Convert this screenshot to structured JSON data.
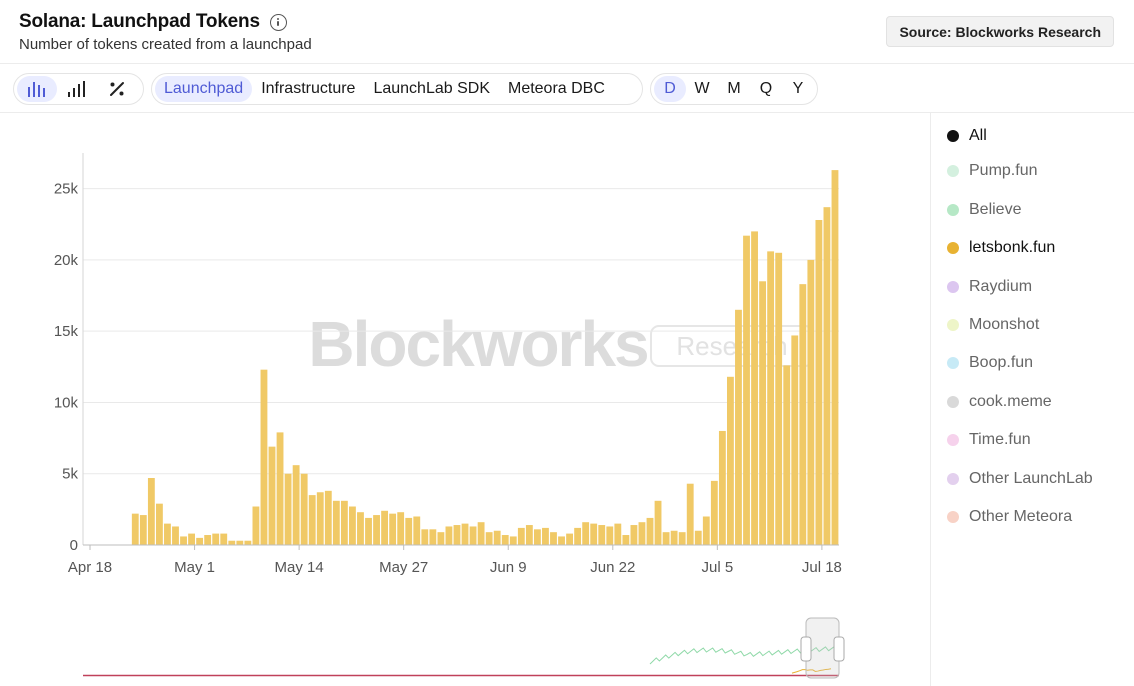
{
  "header": {
    "title": "Solana: Launchpad Tokens",
    "subtitle": "Number of tokens created from a launchpad",
    "source_label": "Source: Blockworks Research"
  },
  "toolbar": {
    "views": [
      {
        "icon": "bar-chart-icon",
        "active": true
      },
      {
        "icon": "signal-bars-icon",
        "active": false
      },
      {
        "icon": "percent-icon",
        "active": false
      }
    ],
    "categories": [
      {
        "label": "Launchpad",
        "active": true
      },
      {
        "label": "Infrastructure",
        "active": false
      },
      {
        "label": "LaunchLab SDK",
        "active": false
      },
      {
        "label": "Meteora DBC",
        "active": false
      }
    ],
    "timeframes": [
      {
        "label": "D",
        "active": true
      },
      {
        "label": "W",
        "active": false
      },
      {
        "label": "M",
        "active": false
      },
      {
        "label": "Q",
        "active": false
      },
      {
        "label": "Y",
        "active": false
      }
    ]
  },
  "watermark": {
    "brand": "Blockworks",
    "tag": "Research"
  },
  "legend": [
    {
      "label": "All",
      "color": "#111111",
      "on": true
    },
    {
      "label": "Pump.fun",
      "color": "#d4f0df",
      "on": false
    },
    {
      "label": "Believe",
      "color": "#b6e8c6",
      "on": false
    },
    {
      "label": "letsbonk.fun",
      "color": "#e8b232",
      "on": true
    },
    {
      "label": "Raydium",
      "color": "#dcc6f0",
      "on": false
    },
    {
      "label": "Moonshot",
      "color": "#eef5c8",
      "on": false
    },
    {
      "label": "Boop.fun",
      "color": "#c7eaf6",
      "on": false
    },
    {
      "label": "cook.meme",
      "color": "#d9d9d9",
      "on": false
    },
    {
      "label": "Time.fun",
      "color": "#f6d2ec",
      "on": false
    },
    {
      "label": "Other LaunchLab",
      "color": "#e3d0ee",
      "on": false
    },
    {
      "label": "Other Meteora",
      "color": "#f8d2c6",
      "on": false
    }
  ],
  "chart_data": {
    "type": "bar",
    "series": [
      {
        "name": "letsbonk.fun",
        "color": "#f0c966",
        "start": "2025-04-18",
        "values": [
          0,
          0,
          0,
          0,
          0,
          0,
          2200,
          2100,
          4700,
          2900,
          1500,
          1300,
          600,
          800,
          500,
          700,
          800,
          800,
          300,
          300,
          300,
          2700,
          12300,
          6900,
          7900,
          5000,
          5600,
          5000,
          3500,
          3700,
          3800,
          3100,
          3100,
          2700,
          2300,
          1900,
          2100,
          2400,
          2200,
          2300,
          1900,
          2000,
          1100,
          1100,
          900,
          1300,
          1400,
          1500,
          1300,
          1600,
          900,
          1000,
          700,
          600,
          1200,
          1400,
          1100,
          1200,
          900,
          600,
          800,
          1200,
          1600,
          1500,
          1400,
          1300,
          1500,
          700,
          1400,
          1600,
          1900,
          3100,
          900,
          1000,
          900,
          4300,
          1000,
          2000,
          4500,
          8000,
          11800,
          16500,
          21700,
          22000,
          18500,
          20600,
          20500,
          12600,
          14700,
          18300,
          20000,
          22800,
          23700,
          26300
        ]
      }
    ],
    "x_ticks": [
      {
        "label": "Apr 18",
        "index": 0
      },
      {
        "label": "May 1",
        "index": 13
      },
      {
        "label": "May 14",
        "index": 26
      },
      {
        "label": "May 27",
        "index": 39
      },
      {
        "label": "Jun 9",
        "index": 52
      },
      {
        "label": "Jun 22",
        "index": 65
      },
      {
        "label": "Jul 5",
        "index": 78
      },
      {
        "label": "Jul 18",
        "index": 91
      }
    ],
    "y_ticks": [
      {
        "label": "0",
        "value": 0
      },
      {
        "label": "5k",
        "value": 5000
      },
      {
        "label": "10k",
        "value": 10000
      },
      {
        "label": "15k",
        "value": 15000
      },
      {
        "label": "20k",
        "value": 20000
      },
      {
        "label": "25k",
        "value": 25000
      }
    ],
    "xlim": [
      0,
      91
    ],
    "ylim": [
      0,
      27500
    ],
    "grid": true,
    "legend_position": "right",
    "navigator_preview": true
  }
}
